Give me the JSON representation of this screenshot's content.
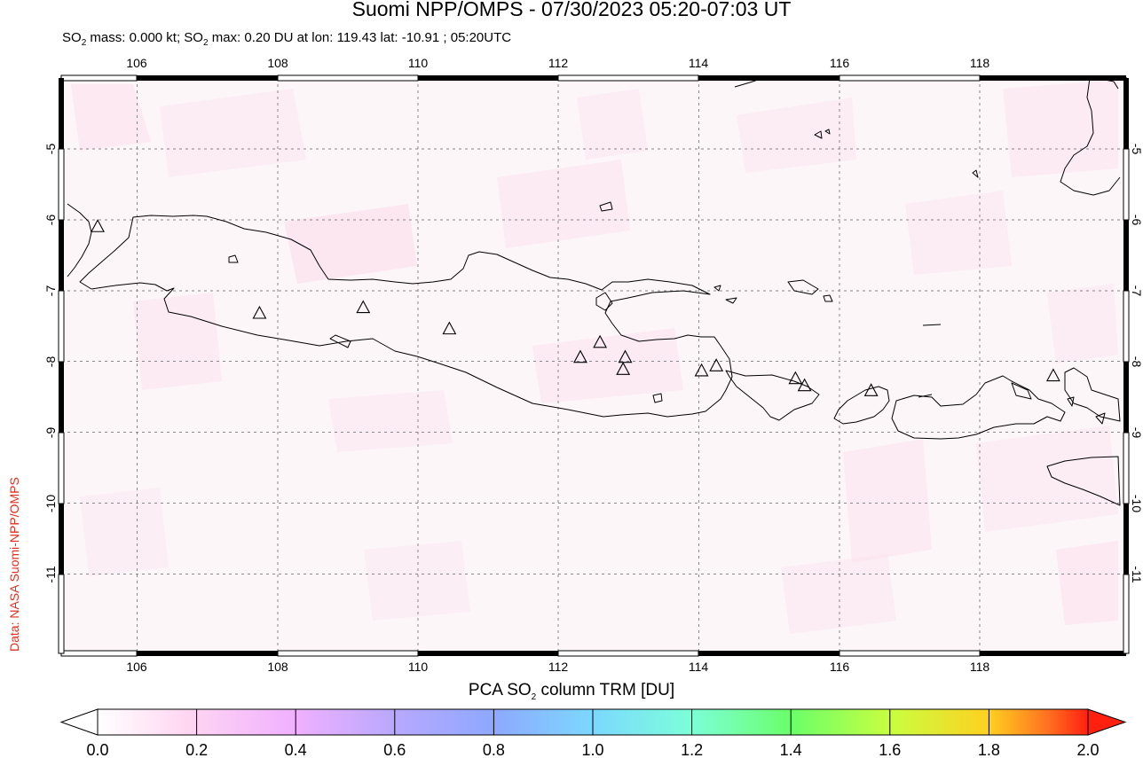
{
  "title": "Suomi NPP/OMPS - 07/30/2023 05:20-07:03 UT",
  "subtitle": {
    "prefix": "SO",
    "sub": "2",
    "mid": " mass: 0.000 kt; SO",
    "sub2": "2",
    "rest": " max: 0.20 DU at lon: 119.43 lat: -10.91 ; 05:20UTC"
  },
  "credit": "Data: NASA Suomi-NPP/OMPS",
  "colorbar": {
    "title_prefix": "PCA SO",
    "title_sub": "2",
    "title_rest": " column TRM [DU]",
    "labels": [
      "0.0",
      "0.2",
      "0.4",
      "0.6",
      "0.8",
      "1.0",
      "1.2",
      "1.4",
      "1.6",
      "1.8",
      "2.0"
    ],
    "colors": [
      "#ffffff",
      "#ffd6f2",
      "#f0b0ff",
      "#b8a8ff",
      "#8ea8ff",
      "#7cd8ff",
      "#7cffd8",
      "#6aff6a",
      "#c8ff40",
      "#ffd020",
      "#ff7020",
      "#ff2010"
    ]
  },
  "map": {
    "lon_range": [
      104.9,
      120.1
    ],
    "lat_range": [
      -12.1,
      -4.0
    ],
    "lon_ticks": [
      "106",
      "108",
      "110",
      "112",
      "114",
      "116",
      "118"
    ],
    "lat_ticks": [
      "-5",
      "-6",
      "-7",
      "-8",
      "-9",
      "-10",
      "-11"
    ],
    "volcano_icon": "triangle-icon",
    "volcanoes": [
      {
        "lon": 105.42,
        "lat": -6.1
      },
      {
        "lon": 107.73,
        "lat": -7.32
      },
      {
        "lon": 109.21,
        "lat": -7.24
      },
      {
        "lon": 110.44,
        "lat": -7.54
      },
      {
        "lon": 112.31,
        "lat": -7.94
      },
      {
        "lon": 112.59,
        "lat": -7.73
      },
      {
        "lon": 112.95,
        "lat": -7.94
      },
      {
        "lon": 112.92,
        "lat": -8.11
      },
      {
        "lon": 114.04,
        "lat": -8.13
      },
      {
        "lon": 114.25,
        "lat": -8.06
      },
      {
        "lon": 115.38,
        "lat": -8.24
      },
      {
        "lon": 115.51,
        "lat": -8.34
      },
      {
        "lon": 116.46,
        "lat": -8.41
      },
      {
        "lon": 119.06,
        "lat": -8.2
      }
    ]
  }
}
